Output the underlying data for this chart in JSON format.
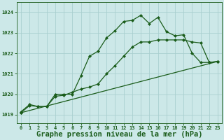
{
  "xlabel": "Graphe pression niveau de la mer (hPa)",
  "xlim": [
    -0.5,
    23.5
  ],
  "ylim": [
    1018.6,
    1024.5
  ],
  "yticks": [
    1019,
    1020,
    1021,
    1022,
    1023,
    1024
  ],
  "xticks": [
    0,
    1,
    2,
    3,
    4,
    5,
    6,
    7,
    8,
    9,
    10,
    11,
    12,
    13,
    14,
    15,
    16,
    17,
    18,
    19,
    20,
    21,
    22,
    23
  ],
  "bg_color": "#cce8e8",
  "grid_color": "#aacfcf",
  "line_color": "#1a5c1a",
  "series1_x": [
    0,
    1,
    2,
    3,
    4,
    5,
    6,
    7,
    8,
    9,
    10,
    11,
    12,
    13,
    14,
    15,
    16,
    17,
    18,
    19,
    20,
    21,
    22,
    23
  ],
  "series1_y": [
    1019.15,
    1019.5,
    1019.4,
    1019.4,
    1020.0,
    1020.0,
    1020.0,
    1020.9,
    1021.85,
    1022.1,
    1022.75,
    1023.1,
    1023.55,
    1023.6,
    1023.85,
    1023.45,
    1023.75,
    1023.05,
    1022.85,
    1022.9,
    1022.0,
    1021.55,
    1021.55,
    1021.6
  ],
  "series2_x": [
    0,
    1,
    2,
    3,
    4,
    5,
    6,
    7,
    8,
    9,
    10,
    11,
    12,
    13,
    14,
    15,
    16,
    17,
    18,
    19,
    20,
    21,
    22,
    23
  ],
  "series2_y": [
    1019.1,
    1019.45,
    1019.4,
    1019.4,
    1019.9,
    1019.95,
    1020.1,
    1020.25,
    1020.35,
    1020.5,
    1021.0,
    1021.4,
    1021.85,
    1022.3,
    1022.55,
    1022.55,
    1022.65,
    1022.65,
    1022.65,
    1022.65,
    1022.55,
    1022.5,
    1021.55,
    1021.6
  ],
  "series3_x": [
    0,
    23
  ],
  "series3_y": [
    1019.1,
    1021.6
  ],
  "marker": "D",
  "markersize": 2,
  "linewidth": 0.9,
  "xlabel_fontsize": 7.5,
  "tick_fontsize": 5.0
}
